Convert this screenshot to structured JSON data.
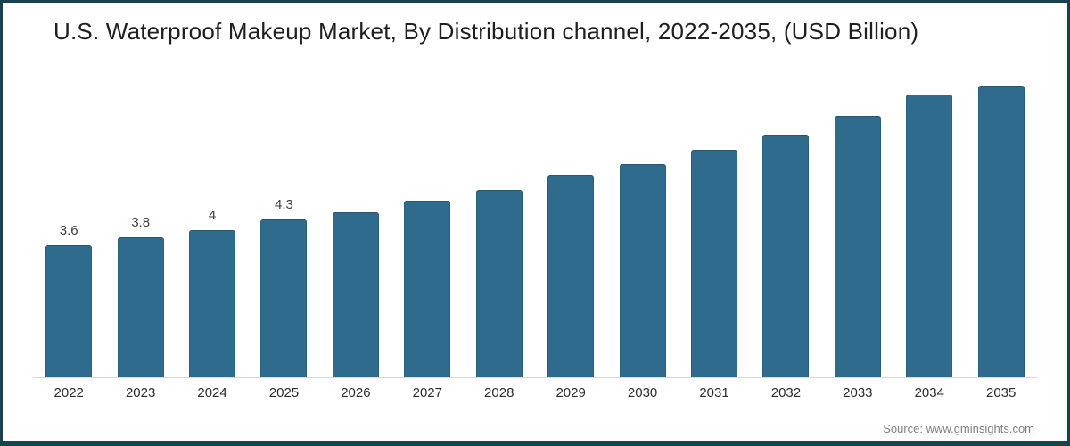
{
  "frame": {
    "border_color": "#17414F",
    "background": "#ffffff"
  },
  "footer": {
    "source_label": "Source: www.gminsights.com"
  },
  "chart_data": {
    "type": "bar",
    "title": "U.S. Waterproof Makeup Market, By Distribution channel, 2022-2035, (USD Billion)",
    "categories": [
      "2022",
      "2023",
      "2024",
      "2025",
      "2026",
      "2027",
      "2028",
      "2029",
      "2030",
      "2031",
      "2032",
      "2033",
      "2034",
      "2035"
    ],
    "values": [
      3.6,
      3.8,
      4.0,
      4.3,
      4.5,
      4.8,
      5.1,
      5.5,
      5.8,
      6.2,
      6.6,
      7.1,
      7.7,
      8.4
    ],
    "data_labels": [
      "3.6",
      "3.8",
      "4",
      "4.3",
      "",
      "",
      "",
      "",
      "",
      "",
      "",
      "",
      "",
      ""
    ],
    "xlabel": "",
    "ylabel": "",
    "ylim": [
      0,
      8.5
    ],
    "grid": false,
    "legend_position": "none",
    "bar_color": "#2E6B8C",
    "axis_line_color": "#D9D9D9"
  }
}
